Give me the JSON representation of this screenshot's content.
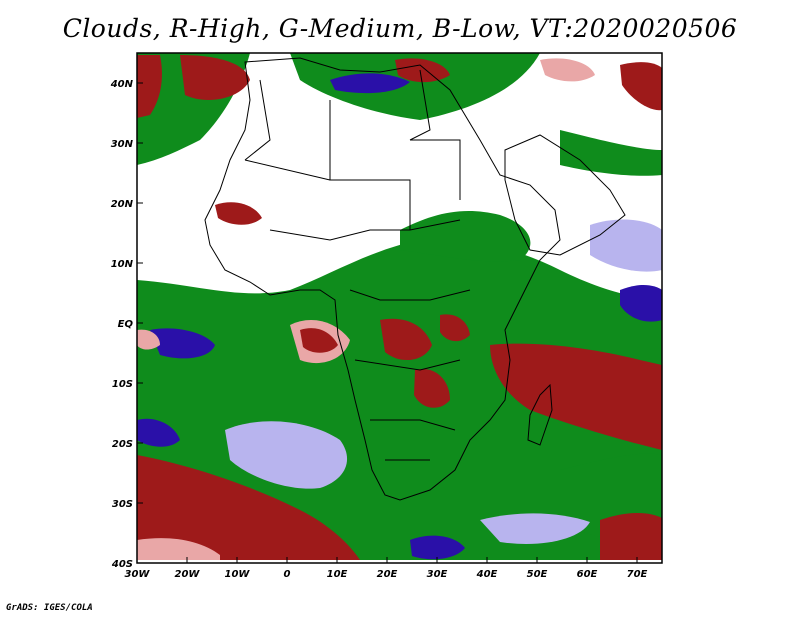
{
  "title": "Clouds, R-High, G-Medium, B-Low, VT:2020020506",
  "credit": "GrADS: IGES/COLA",
  "map": {
    "lon_range": [
      -30,
      75
    ],
    "lat_range": [
      -40,
      45
    ],
    "lat_ticks": [
      {
        "value": 40,
        "label": "40N"
      },
      {
        "value": 30,
        "label": "30N"
      },
      {
        "value": 20,
        "label": "20N"
      },
      {
        "value": 10,
        "label": "10N"
      },
      {
        "value": 0,
        "label": "EQ"
      },
      {
        "value": -10,
        "label": "10S"
      },
      {
        "value": -20,
        "label": "20S"
      },
      {
        "value": -30,
        "label": "30S"
      },
      {
        "value": -40,
        "label": "40S"
      }
    ],
    "lon_ticks": [
      {
        "value": -30,
        "label": "30W"
      },
      {
        "value": -20,
        "label": "20W"
      },
      {
        "value": -10,
        "label": "10W"
      },
      {
        "value": 0,
        "label": "0"
      },
      {
        "value": 10,
        "label": "10E"
      },
      {
        "value": 20,
        "label": "20E"
      },
      {
        "value": 30,
        "label": "30E"
      },
      {
        "value": 40,
        "label": "40E"
      },
      {
        "value": 50,
        "label": "50E"
      },
      {
        "value": 60,
        "label": "60E"
      },
      {
        "value": 70,
        "label": "70E"
      }
    ],
    "colors": {
      "high": "#9e1a1a",
      "high_light": "#e9a7a7",
      "medium": "#0f8c1c",
      "medium_light": "#8fdc8f",
      "low": "#2a10a8",
      "low_light": "#b8b4ee",
      "border": "#000000",
      "background": "#ffffff"
    }
  }
}
